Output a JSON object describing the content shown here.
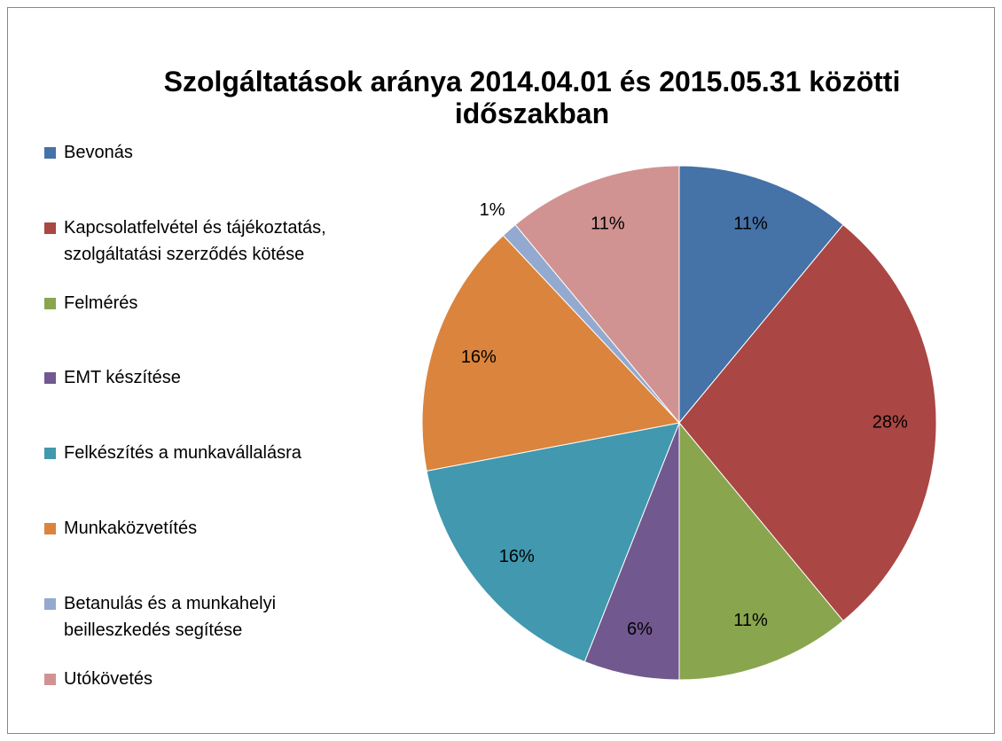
{
  "chart_data": {
    "type": "pie",
    "title": "Szolgáltatások aránya 2014.04.01 és 2015.05.31 közötti időszakban",
    "categories": [
      "Bevonás",
      "Kapcsolatfelvétel és tájékoztatás, szolgáltatási szerződés kötése",
      "Felmérés",
      "EMT készítése",
      "Felkészítés a munkavállalásra",
      "Munkaközvetítés",
      "Betanulás és a munkahelyi beilleszkedés segítése",
      "Utókövetés"
    ],
    "values": [
      11,
      28,
      11,
      6,
      16,
      16,
      1,
      11
    ],
    "value_labels": [
      "11%",
      "28%",
      "11%",
      "6%",
      "16%",
      "16%",
      "1%",
      "11%"
    ],
    "colors": [
      "#4572a7",
      "#aa4643",
      "#89a54e",
      "#71588f",
      "#4198af",
      "#db843d",
      "#93a9cf",
      "#d19392"
    ],
    "legend": "left"
  }
}
